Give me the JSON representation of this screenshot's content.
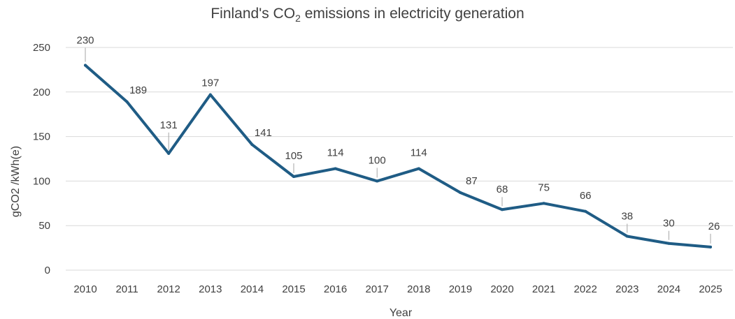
{
  "chart_data": {
    "type": "line",
    "title": {
      "prefix": "Finland's CO",
      "subscript": "2",
      "suffix": " emissions in electricity generation"
    },
    "xlabel": "Year",
    "ylabel": "gCO2 /kWh(e)",
    "ylim": [
      0,
      250
    ],
    "yticks": [
      0,
      50,
      100,
      150,
      200,
      250
    ],
    "grid": true,
    "categories": [
      "2010",
      "2011",
      "2012",
      "2013",
      "2014",
      "2015",
      "2016",
      "2017",
      "2018",
      "2019",
      "2020",
      "2021",
      "2022",
      "2023",
      "2024",
      "2025"
    ],
    "series": [
      {
        "values": [
          230,
          189,
          131,
          197,
          141,
          105,
          114,
          100,
          114,
          87,
          68,
          75,
          66,
          38,
          30,
          26
        ]
      }
    ],
    "line_color": "#1f5c85",
    "gridline_color": "#d9d9d9",
    "text_color": "#404040"
  }
}
